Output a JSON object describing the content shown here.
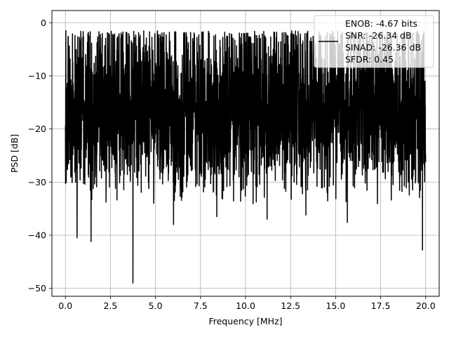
{
  "chart_data": {
    "type": "line",
    "xlabel": "Frequency [MHz]",
    "ylabel": "PSD [dB]",
    "xlim": [
      -0.75,
      20.75
    ],
    "ylim": [
      -51.5,
      2.3
    ],
    "xticks": [
      0.0,
      2.5,
      5.0,
      7.5,
      10.0,
      12.5,
      15.0,
      17.5,
      20.0
    ],
    "xtick_labels": [
      "0.0",
      "2.5",
      "5.0",
      "7.5",
      "10.0",
      "12.5",
      "15.0",
      "17.5",
      "20.0"
    ],
    "yticks": [
      0,
      -10,
      -20,
      -30,
      -40,
      -50
    ],
    "ytick_labels": [
      "0",
      "−10",
      "−20",
      "−30",
      "−40",
      "−50"
    ],
    "grid": true,
    "legend_position": "top-right",
    "series": [
      {
        "name": "ENOB: -4.67 bits\nSNR: -26.34 dB\nSINAD: -26.36 dB\nSFDR: 0.45",
        "color": "#000000",
        "x_range": [
          0.0,
          20.0
        ],
        "noise_floor_db": -15,
        "noise_spread_db": [
          -35,
          -3
        ],
        "peaks": [
          {
            "x": 0.02,
            "y": -1.5
          },
          {
            "x": 0.04,
            "y": -15.5
          }
        ],
        "notches": [
          {
            "x": 0.65,
            "y": -40.5
          },
          {
            "x": 1.42,
            "y": -41.2
          },
          {
            "x": 3.75,
            "y": -49.0
          },
          {
            "x": 4.9,
            "y": -34.0
          },
          {
            "x": 6.0,
            "y": -38.0
          },
          {
            "x": 8.4,
            "y": -36.5
          },
          {
            "x": 11.2,
            "y": -37.0
          },
          {
            "x": 13.35,
            "y": -36.2
          },
          {
            "x": 15.65,
            "y": -37.6
          },
          {
            "x": 19.82,
            "y": -42.8
          }
        ]
      }
    ]
  },
  "legend": {
    "lines": [
      "ENOB: -4.67 bits",
      "SNR: -26.34 dB",
      "SINAD: -26.36 dB",
      "SFDR: 0.45"
    ],
    "color": "#000000"
  }
}
